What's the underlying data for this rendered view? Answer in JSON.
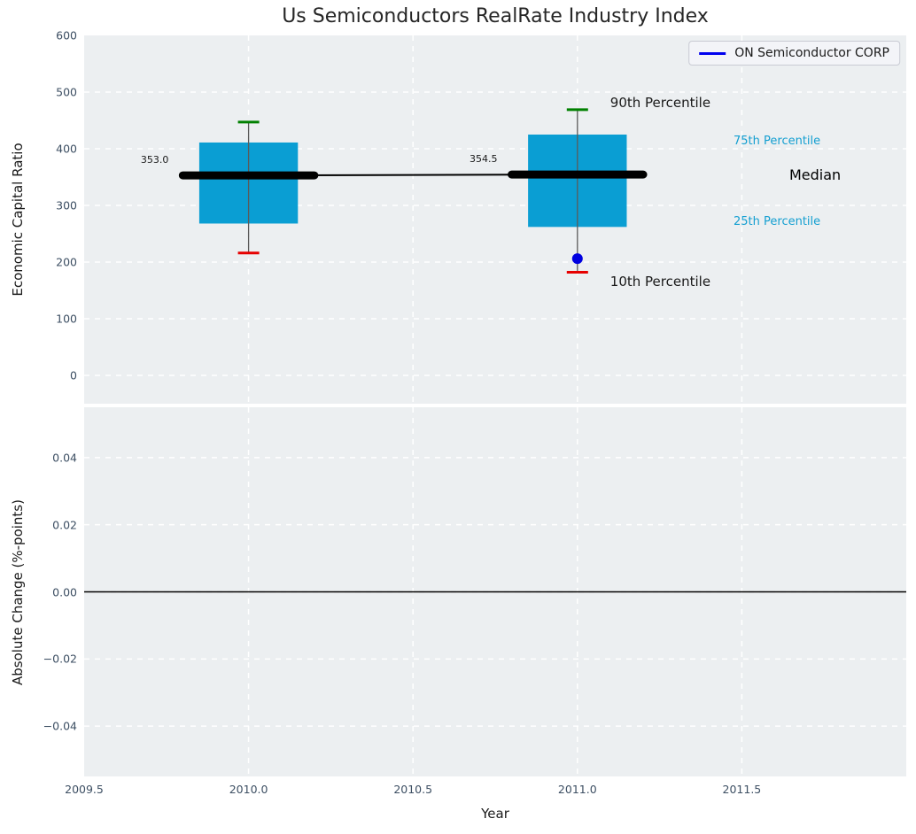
{
  "figure": {
    "title": "Us Semiconductors RealRate Industry Index"
  },
  "colors": {
    "plot_bg": "#eceff1",
    "grid": "#ffffff",
    "tick_label": "#3d4f63",
    "text": "#1a1a1a",
    "box_fill": "#0a9ed3",
    "percentile_label": "#149fd1",
    "median_line": "#000000",
    "whisker": "#5a5a5a",
    "cap_90th": "#008000",
    "cap_10th": "#e60000",
    "company_marker": "#0000e0",
    "legend_line": "#0000ee",
    "zero_line": "#000000"
  },
  "legend": {
    "label": "ON Semiconductor CORP",
    "position": "upper right"
  },
  "chart_data": [
    {
      "type": "boxplot",
      "title": "Us Semiconductors RealRate Industry Index",
      "ylabel": "Economic Capital Ratio",
      "ylim": [
        -50,
        600
      ],
      "yticks": [
        0,
        100,
        200,
        300,
        400,
        500,
        600
      ],
      "ytick_labels": [
        "0",
        "100",
        "200",
        "300",
        "400",
        "500",
        "600"
      ],
      "xlim": [
        2009.5,
        2012.0
      ],
      "grid": true,
      "boxes": [
        {
          "x": 2010,
          "p90": 447,
          "p75": 411,
          "median": 353.0,
          "p25": 268,
          "p10": 216,
          "median_label": "353.0"
        },
        {
          "x": 2011,
          "p90": 469,
          "p75": 425,
          "median": 354.5,
          "p25": 262,
          "p10": 182,
          "median_label": "354.5"
        }
      ],
      "series": [
        {
          "name": "ON Semiconductor CORP",
          "points": [
            {
              "x": 2011,
              "y": 206
            }
          ]
        }
      ],
      "annotations": [
        {
          "id": "p90",
          "text": "90th Percentile"
        },
        {
          "id": "p75",
          "text": "75th Percentile"
        },
        {
          "id": "median",
          "text": "Median"
        },
        {
          "id": "p25",
          "text": "25th Percentile"
        },
        {
          "id": "p10",
          "text": "10th Percentile"
        }
      ]
    },
    {
      "type": "line",
      "ylabel": "Absolute Change (%-points)",
      "xlabel": "Year",
      "ylim": [
        -0.055,
        0.055
      ],
      "yticks": [
        0.04,
        0.02,
        0.0,
        -0.02,
        -0.04
      ],
      "ytick_labels": [
        "0.04",
        "0.02",
        "0.00",
        "−0.02",
        "−0.04"
      ],
      "xticks": [
        2009.5,
        2010.0,
        2010.5,
        2011.0,
        2011.5
      ],
      "xtick_labels": [
        "2009.5",
        "2010.0",
        "2010.5",
        "2011.0",
        "2011.5"
      ],
      "zero_line": 0.0,
      "grid": true,
      "series": []
    }
  ]
}
